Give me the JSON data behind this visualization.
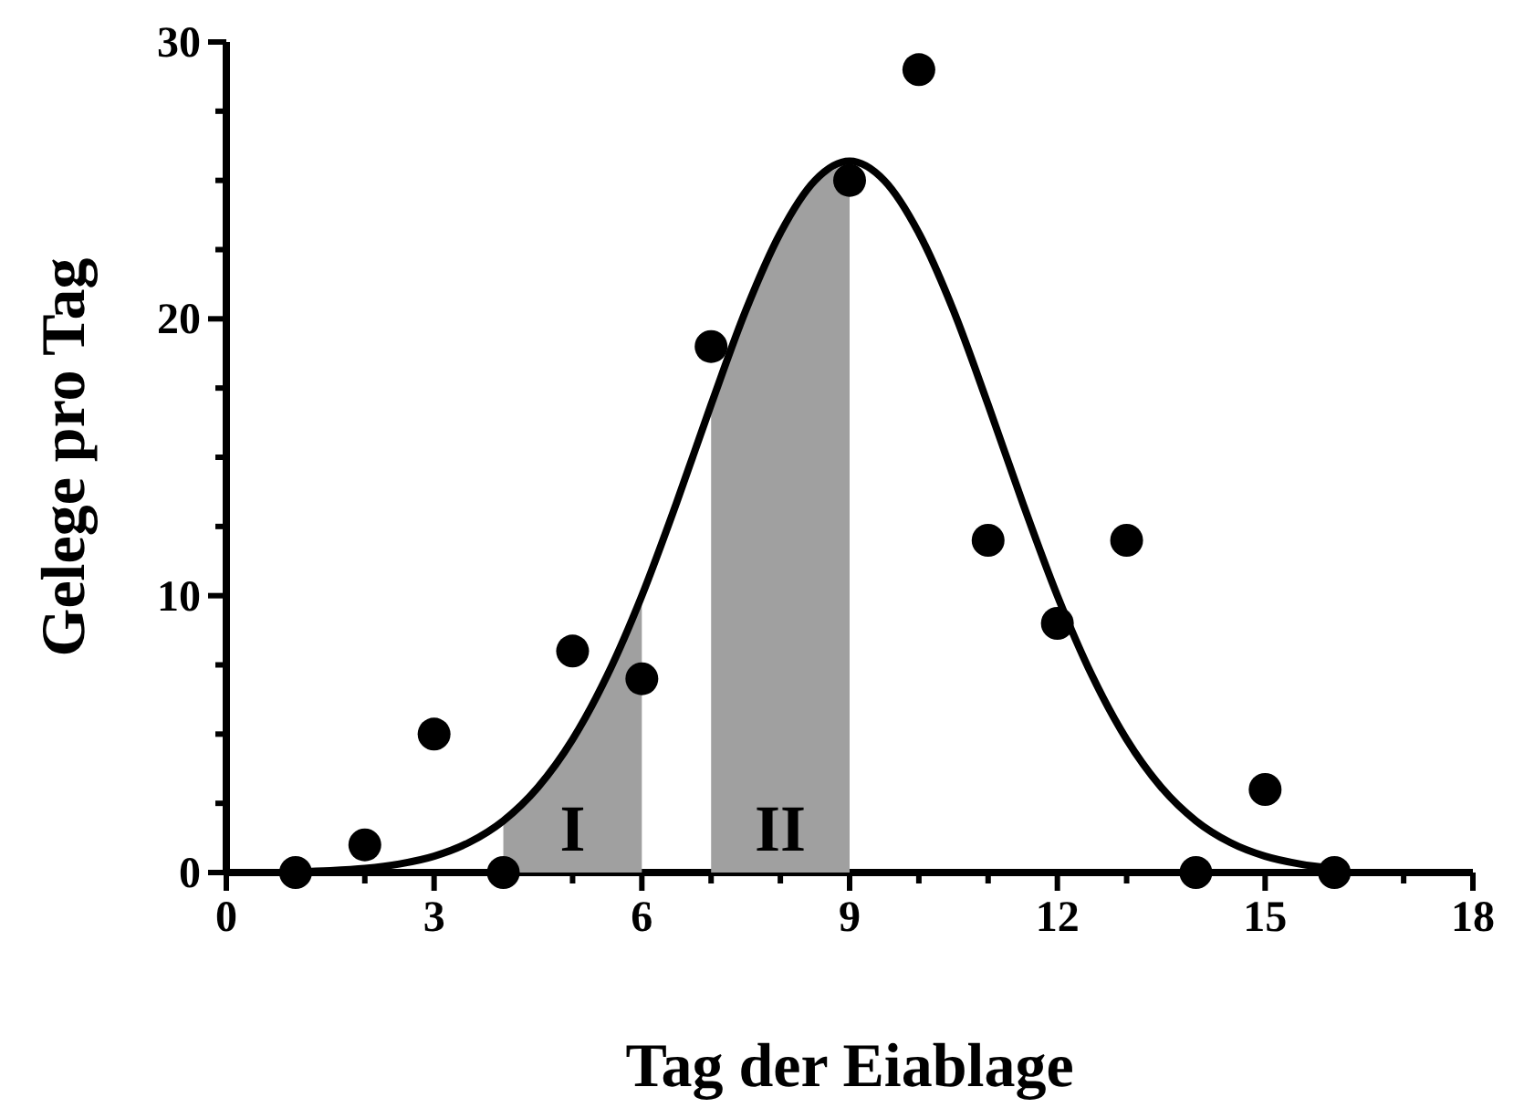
{
  "chart_data": {
    "type": "scatter",
    "xlabel": "Tag der Eiablage",
    "ylabel": "Gelege pro Tag",
    "xlim": [
      0,
      18
    ],
    "ylim": [
      0,
      30
    ],
    "xticks": [
      0,
      {
        "value": 1,
        "label": null
      },
      {
        "value": 2,
        "label": null
      },
      3,
      {
        "value": 4,
        "label": null
      },
      {
        "value": 5,
        "label": null
      },
      6,
      {
        "value": 7,
        "label": null
      },
      {
        "value": 8,
        "label": null
      },
      9,
      {
        "value": 10,
        "label": null
      },
      {
        "value": 11,
        "label": null
      },
      12,
      {
        "value": 13,
        "label": null
      },
      {
        "value": 14,
        "label": null
      },
      15,
      {
        "value": 16,
        "label": null
      },
      {
        "value": 17,
        "label": null
      },
      18
    ],
    "yticks": [
      0,
      {
        "value": 2.5,
        "label": null
      },
      {
        "value": 5,
        "label": null
      },
      {
        "value": 7.5,
        "label": null
      },
      10,
      {
        "value": 12.5,
        "label": null
      },
      {
        "value": 15,
        "label": null
      },
      {
        "value": 17.5,
        "label": null
      },
      20,
      {
        "value": 22.5,
        "label": null
      },
      {
        "value": 25,
        "label": null
      },
      {
        "value": 27.5,
        "label": null
      },
      30
    ],
    "annotations": [
      "I",
      "II"
    ],
    "series": [
      {
        "type": "area",
        "color": "#a0a0a0",
        "x": [
          4,
          4.5,
          5,
          5.5,
          6
        ],
        "values": [
          1.87,
          3.08,
          4.81,
          7.12,
          10
        ]
      },
      {
        "type": "area",
        "color": "#a0a0a0",
        "x": [
          7,
          7.5,
          8,
          8.5,
          9
        ],
        "values": [
          16.9,
          20.3,
          23.1,
          25,
          25.7
        ]
      },
      {
        "type": "line",
        "color": "#000000",
        "marker": "none",
        "x": [
          1,
          1.5,
          2,
          2.5,
          3,
          3.5,
          4,
          4.5,
          5,
          5.5,
          6,
          6.5,
          7,
          7.5,
          8,
          8.5,
          9,
          9.5,
          10,
          10.5,
          11,
          11.5,
          12,
          12.5,
          13,
          13.5,
          14,
          14.5,
          15,
          15.5,
          16
        ],
        "values": [
          0.03,
          0.07,
          0.15,
          0.31,
          0.59,
          1.08,
          1.87,
          3.08,
          4.81,
          7.12,
          10,
          13.35,
          16.9,
          20.3,
          23.1,
          25,
          25.7,
          25,
          23.1,
          20.3,
          16.9,
          13.35,
          10,
          7.12,
          4.81,
          3.08,
          1.87,
          1.08,
          0.59,
          0.31,
          0.15
        ]
      },
      {
        "color": "#000000",
        "marker": "circle",
        "x": [
          1,
          2,
          3,
          4,
          5,
          6,
          7,
          9,
          10,
          11,
          12,
          13,
          14,
          15,
          16
        ],
        "values": [
          0,
          1,
          5,
          0,
          8,
          7,
          19,
          25,
          29,
          12,
          9,
          12,
          0,
          3,
          0
        ]
      }
    ]
  }
}
